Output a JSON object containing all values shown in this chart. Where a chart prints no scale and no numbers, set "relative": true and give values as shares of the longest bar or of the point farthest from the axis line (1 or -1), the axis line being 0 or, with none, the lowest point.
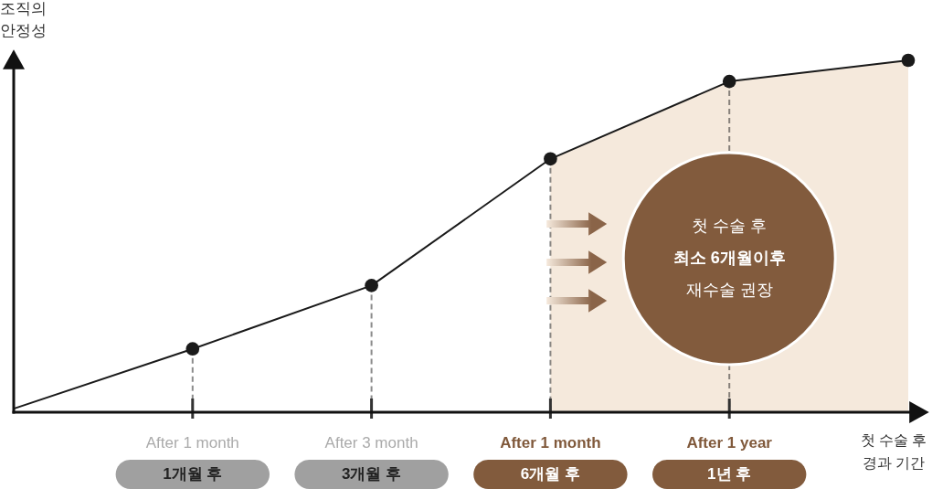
{
  "chart_data": {
    "type": "line",
    "relative": true,
    "xlabel": "첫 수술 후\n경과 기간",
    "ylabel": "조직의\n안정성",
    "categories": [
      null,
      "1개월 후",
      "3개월 후",
      "6개월 후",
      "1년 후",
      null
    ],
    "line_style": "solid",
    "series": [
      {
        "type": "area",
        "color": "#f5e9dc",
        "values": [
          null,
          null,
          null,
          0.72,
          0.94,
          1
        ]
      },
      {
        "type": "line",
        "color": "#1a1a1a",
        "values": [
          0.01,
          0.18,
          0.36,
          0.72,
          0.94,
          1
        ]
      },
      {
        "type": "lollipop",
        "color": "#1a1a1a",
        "marker": "circle",
        "line_style": "dashed",
        "values": [
          null,
          0.18,
          0.36,
          0.72,
          0.94,
          null
        ]
      },
      {
        "type": "scatter",
        "color": "#1a1a1a",
        "marker": "circle",
        "values": [
          null,
          null,
          null,
          null,
          null,
          1
        ]
      }
    ],
    "annotations": [
      {
        "text": "After 1 month",
        "x": "1개월 후"
      },
      {
        "text": "After 3 month",
        "x": "3개월 후"
      },
      {
        "text": "After 1 month",
        "x": "6개월 후"
      },
      {
        "text": "After 1 year",
        "x": "1년 후"
      },
      "첫 수술 후",
      "최소 6개월이후",
      "재수술 권장"
    ]
  }
}
